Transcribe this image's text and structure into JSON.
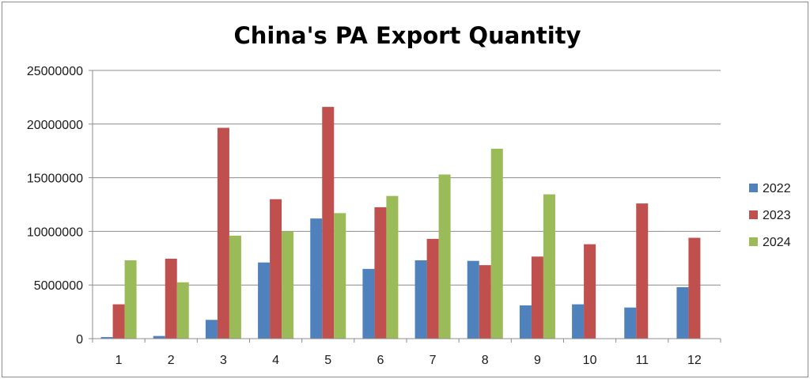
{
  "chart_data": {
    "type": "bar",
    "title": "China's PA Export Quantity",
    "xlabel": "",
    "ylabel": "",
    "categories": [
      "1",
      "2",
      "3",
      "4",
      "5",
      "6",
      "7",
      "8",
      "9",
      "10",
      "11",
      "12"
    ],
    "ylim": [
      0,
      25000000
    ],
    "yticks": [
      "0",
      "5000000",
      "10000000",
      "15000000",
      "20000000",
      "25000000"
    ],
    "grid": true,
    "legend_position": "right",
    "series": [
      {
        "name": "2022",
        "color": "#4f81bd",
        "values": [
          150000,
          250000,
          1750000,
          7100000,
          11200000,
          6500000,
          7300000,
          7250000,
          3100000,
          3200000,
          2900000,
          4800000
        ]
      },
      {
        "name": "2023",
        "color": "#c0504d",
        "values": [
          3200000,
          7450000,
          19650000,
          13000000,
          21600000,
          12250000,
          9300000,
          6850000,
          7650000,
          8800000,
          12600000,
          9400000
        ]
      },
      {
        "name": "2024",
        "color": "#9bbb59",
        "values": [
          7300000,
          5250000,
          9600000,
          10000000,
          11700000,
          13300000,
          15300000,
          17700000,
          13450000,
          null,
          null,
          null
        ]
      }
    ]
  }
}
